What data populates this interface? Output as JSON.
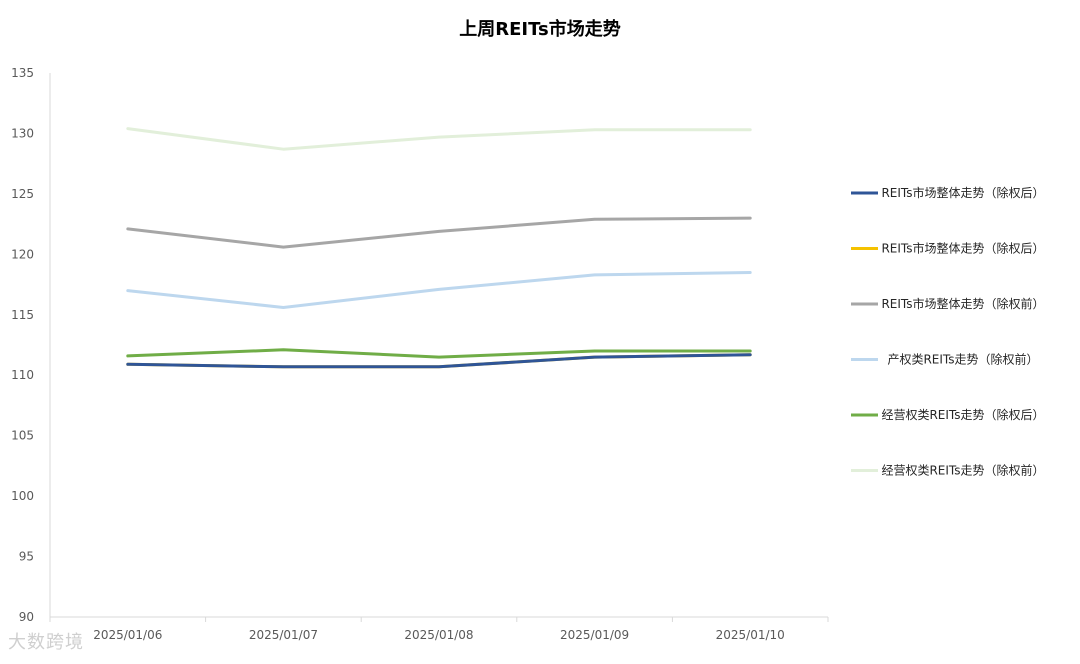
{
  "chart_data": {
    "type": "line",
    "title": "上周REITs市场走势",
    "xlabel": "",
    "ylabel": "",
    "categories": [
      "2025/01/06",
      "2025/01/07",
      "2025/01/08",
      "2025/01/09",
      "2025/01/10"
    ],
    "ylim": [
      90,
      135
    ],
    "yticks": [
      90,
      95,
      100,
      105,
      110,
      115,
      120,
      125,
      130,
      135
    ],
    "grid": false,
    "legend_position": "right",
    "series": [
      {
        "name": "REITs市场整体走势（除权后）",
        "color": "#2F5597",
        "values": [
          110.9,
          110.7,
          110.7,
          111.5,
          111.7
        ]
      },
      {
        "name": "REITs市场整体走势（除权后）",
        "color": "#F5C200",
        "values": [
          110.9,
          110.7,
          110.7,
          111.5,
          111.7
        ]
      },
      {
        "name": "REITs市场整体走势（除权前）",
        "color": "#A6A6A6",
        "values": [
          122.1,
          120.6,
          121.9,
          122.9,
          123.0
        ]
      },
      {
        "name": "产权类REITs走势（除权前）",
        "color": "#BDD7EE",
        "values": [
          117.0,
          115.6,
          117.1,
          118.3,
          118.5
        ]
      },
      {
        "name": "经营权类REITs走势（除权后）",
        "color": "#70AD47",
        "values": [
          111.6,
          112.1,
          111.5,
          112.0,
          112.0
        ]
      },
      {
        "name": "经营权类REITs走势（除权前）",
        "color": "#E2EFDA",
        "values": [
          130.4,
          128.7,
          129.7,
          130.3,
          130.3
        ]
      }
    ]
  },
  "watermark": "大数跨境"
}
